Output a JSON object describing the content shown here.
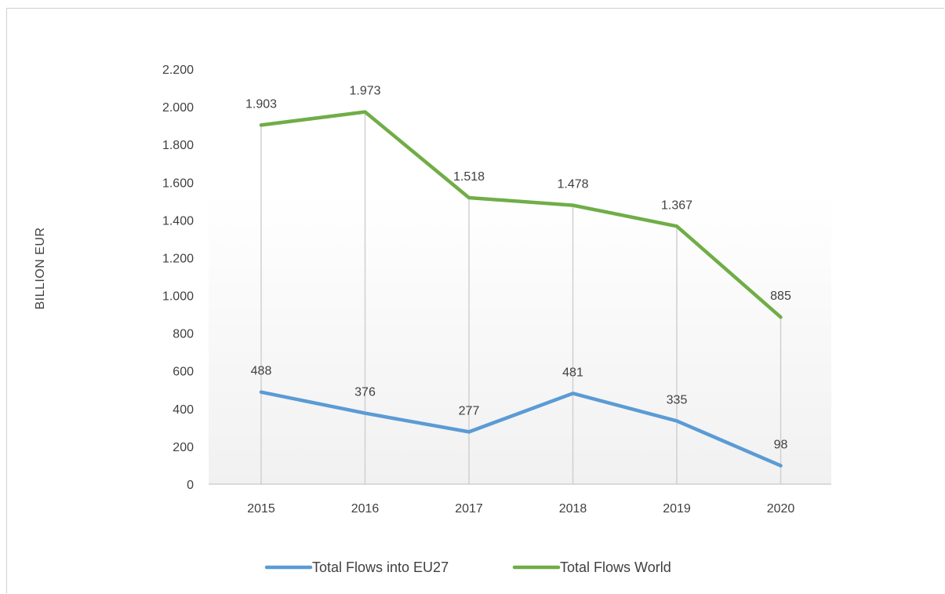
{
  "chart_data": {
    "type": "line",
    "ylabel": "BILLION EUR",
    "categories": [
      "2015",
      "2016",
      "2017",
      "2018",
      "2019",
      "2020"
    ],
    "ylim": [
      0,
      2200
    ],
    "yticks": [
      0,
      200,
      400,
      600,
      800,
      1000,
      1200,
      1400,
      1600,
      1800,
      2000,
      2200
    ],
    "ytick_labels": [
      "0",
      "200",
      "400",
      "600",
      "800",
      "1.000",
      "1.200",
      "1.400",
      "1.600",
      "1.800",
      "2.000",
      "2.200"
    ],
    "grid": "vertical drop lines at categories",
    "legend_position": "bottom",
    "series": [
      {
        "name": "Total Flows into EU27",
        "color": "#5b9bd5",
        "values": [
          488,
          376,
          277,
          481,
          335,
          98
        ],
        "labels": [
          "488",
          "376",
          "277",
          "481",
          "335",
          "98"
        ]
      },
      {
        "name": "Total Flows World",
        "color": "#70ad47",
        "values": [
          1903,
          1973,
          1518,
          1478,
          1367,
          885
        ],
        "labels": [
          "1.903",
          "1.973",
          "1.518",
          "1.478",
          "1.367",
          "885"
        ]
      }
    ]
  }
}
